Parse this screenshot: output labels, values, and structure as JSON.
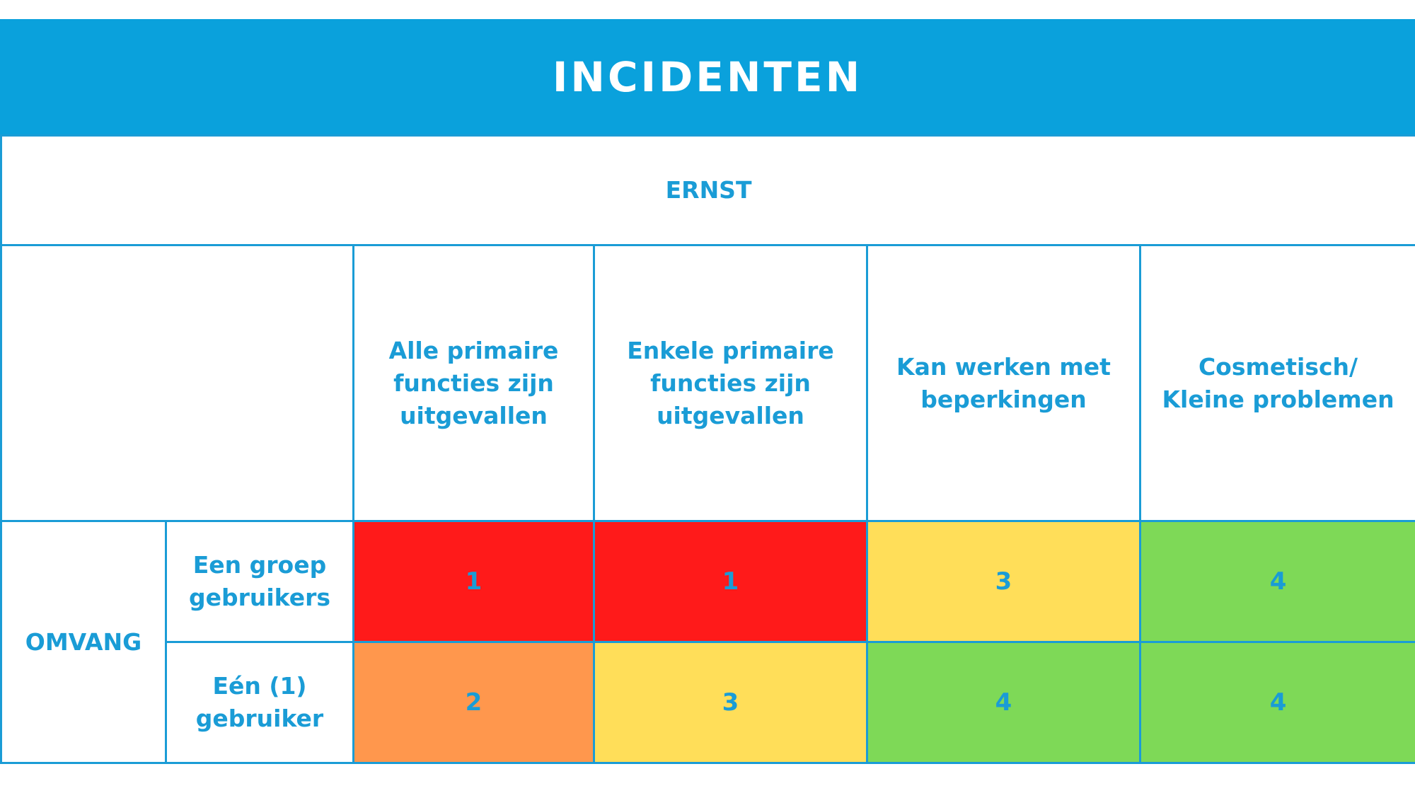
{
  "title": "INCIDENTEN",
  "colors": {
    "header_bg": "#0aa1dc",
    "text_accent": "#1a9cd6",
    "border": "#1a9cd6",
    "priority_1": "#ff1a1a",
    "priority_2": "#ff974d",
    "priority_3": "#ffde59",
    "priority_4": "#7ed957"
  },
  "matrix": {
    "ernst_label": "ERNST",
    "omvang_label": "OMVANG",
    "severity_headers": [
      "Alle primaire\nfuncties zijn\nuitgevallen",
      "Enkele primaire\nfuncties zijn\nuitgevallen",
      "Kan werken met\nbeperkingen",
      "Cosmetisch/\nKleine problemen"
    ],
    "rows": [
      {
        "label": "Een groep\ngebruikers",
        "priorities": [
          "1",
          "1",
          "3",
          "4"
        ]
      },
      {
        "label": "Eén (1)\ngebruiker",
        "priorities": [
          "2",
          "3",
          "4",
          "4"
        ]
      }
    ]
  }
}
